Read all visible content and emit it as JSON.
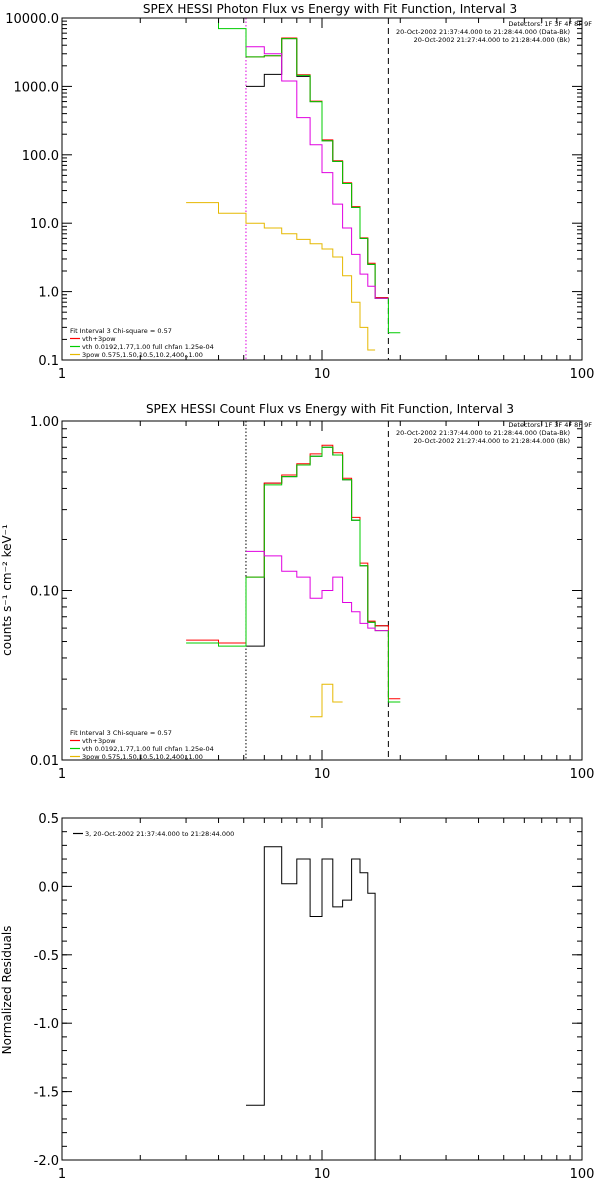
{
  "colors": {
    "black": "#000000",
    "red": "#ff0000",
    "green": "#00cc00",
    "magenta": "#e000e0",
    "orange": "#e6b800",
    "background": "#ffffff"
  },
  "chart_data": [
    {
      "type": "line",
      "title": "SPEX HESSI Photon Flux vs Energy with Fit Function, Interval 3",
      "xscale": "log",
      "yscale": "log",
      "xlim": [
        1,
        100
      ],
      "ylim": [
        0.1,
        10000
      ],
      "xticks": [
        1,
        10,
        100
      ],
      "xtick_labels": [
        "1",
        "10",
        "100"
      ],
      "yticks": [
        0.1,
        1,
        10,
        100,
        1000,
        10000
      ],
      "ytick_labels": [
        "0.1",
        "1.0",
        "10.0",
        "100.0",
        "1000.0",
        "10000.0"
      ],
      "vlines": [
        {
          "x": 5.1,
          "style": "dotted",
          "color": "magenta"
        },
        {
          "x": 18,
          "style": "dashed",
          "color": "black"
        }
      ],
      "header": [
        "Detectors: 1F 3F 4F 8F 9F",
        "20-Oct-2002 21:37:44.000 to 21:28:44.000 (Data-Bk)",
        "20-Oct-2002 21:27:44.000 to 21:28:44.000 (Bk)"
      ],
      "legend": {
        "title": "Fit Interval 3   Chi-square = 0.57",
        "entries": [
          {
            "label": "vth+3pow",
            "color": "red"
          },
          {
            "label": "vth 0.0192,1.77,1.00  full chfan 1.25e-04",
            "color": "green"
          },
          {
            "label": "3pow 0.575,1.50,10.5,10.2,400.,1.00",
            "color": "orange"
          }
        ]
      },
      "series": [
        {
          "color": "black",
          "edges": [
            5.1,
            6,
            7,
            8,
            9,
            10,
            11,
            12,
            13,
            14,
            15,
            16,
            18
          ],
          "values": [
            1000,
            1500,
            5000,
            1400,
            600,
            160,
            80,
            38,
            17,
            6,
            2.5,
            0.8
          ]
        },
        {
          "color": "red",
          "edges": [
            5.1,
            6,
            7,
            8,
            9,
            10,
            11,
            12,
            13,
            14,
            15,
            16,
            18
          ],
          "values": [
            2700,
            2800,
            5100,
            1480,
            610,
            165,
            82,
            39,
            17.5,
            6.1,
            2.6,
            0.82
          ]
        },
        {
          "color": "green",
          "edges": [
            3,
            4,
            5.1,
            6,
            7,
            8,
            9,
            10,
            11,
            12,
            13,
            14,
            15,
            16,
            18,
            20
          ],
          "values": [
            10000,
            7000,
            2700,
            2800,
            5000,
            1450,
            600,
            160,
            80,
            38,
            17,
            6,
            2.5,
            0.8,
            0.25
          ]
        },
        {
          "color": "magenta",
          "edges": [
            5.1,
            6,
            7,
            8,
            9,
            10,
            11,
            12,
            13,
            14,
            15,
            16,
            18
          ],
          "values": [
            3800,
            3000,
            1200,
            350,
            140,
            55,
            19,
            8.5,
            3.5,
            1.8,
            1.2,
            0.8
          ]
        },
        {
          "color": "orange",
          "edges": [
            3,
            4,
            5.1,
            6,
            7,
            8,
            9,
            10,
            11,
            12,
            13,
            14,
            15,
            16
          ],
          "values": [
            20,
            14,
            10,
            8.5,
            7,
            5.8,
            5,
            4.2,
            3.2,
            1.7,
            0.7,
            0.3,
            0.14
          ]
        }
      ]
    },
    {
      "type": "line",
      "title": "SPEX HESSI Count Flux vs Energy with Fit Function, Interval 3",
      "ylabel": "counts s⁻¹ cm⁻² keV⁻¹",
      "xscale": "log",
      "yscale": "log",
      "xlim": [
        1,
        100
      ],
      "ylim": [
        0.01,
        1
      ],
      "xticks": [
        1,
        10,
        100
      ],
      "xtick_labels": [
        "1",
        "10",
        "100"
      ],
      "yticks": [
        0.01,
        0.1,
        1
      ],
      "ytick_labels": [
        "0.01",
        "0.10",
        "1.00"
      ],
      "vlines": [
        {
          "x": 5.1,
          "style": "dotted",
          "color": "black"
        },
        {
          "x": 18,
          "style": "dashed",
          "color": "black"
        }
      ],
      "header": [
        "Detectors: 1F 3F 4F 8F 9F",
        "20-Oct-2002 21:37:44.000 to 21:28:44.000 (Data-Bk)",
        "20-Oct-2002 21:27:44.000 to 21:28:44.000 (Bk)"
      ],
      "legend": {
        "title": "Fit Interval 3   Chi-square = 0.57",
        "entries": [
          {
            "label": "vth+3pow",
            "color": "red"
          },
          {
            "label": "vth 0.0192,1.77,1.00  full chfan 1.25e-04",
            "color": "green"
          },
          {
            "label": "3pow 0.575,1.50,10.5,10.2,400.,1.00",
            "color": "orange"
          }
        ]
      },
      "series": [
        {
          "color": "black",
          "edges": [
            5.1,
            6,
            7,
            8,
            9,
            10,
            11,
            12,
            13,
            14,
            15,
            16,
            18
          ],
          "values": [
            0.047,
            0.43,
            0.47,
            0.55,
            0.62,
            0.7,
            0.63,
            0.45,
            0.26,
            0.14,
            0.065,
            0.062
          ]
        },
        {
          "color": "red",
          "edges": [
            3,
            4,
            5.1,
            6,
            7,
            8,
            9,
            10,
            11,
            12,
            13,
            14,
            15,
            16,
            18,
            20
          ],
          "values": [
            0.051,
            0.049,
            0.12,
            0.43,
            0.48,
            0.56,
            0.64,
            0.72,
            0.65,
            0.46,
            0.27,
            0.145,
            0.066,
            0.062,
            0.023
          ]
        },
        {
          "color": "green",
          "edges": [
            3,
            4,
            5.1,
            6,
            7,
            8,
            9,
            10,
            11,
            12,
            13,
            14,
            15,
            16,
            18,
            20
          ],
          "values": [
            0.049,
            0.047,
            0.12,
            0.42,
            0.47,
            0.55,
            0.62,
            0.7,
            0.63,
            0.45,
            0.26,
            0.14,
            0.065,
            0.058,
            0.022
          ]
        },
        {
          "color": "magenta",
          "edges": [
            5.1,
            6,
            7,
            8,
            9,
            10,
            11,
            12,
            13,
            14,
            15,
            16,
            18
          ],
          "values": [
            0.17,
            0.16,
            0.13,
            0.12,
            0.09,
            0.1,
            0.12,
            0.085,
            0.075,
            0.064,
            0.06,
            0.058
          ]
        },
        {
          "color": "orange",
          "edges": [
            9,
            10,
            11,
            12
          ],
          "values": [
            0.018,
            0.028,
            0.022
          ]
        }
      ]
    },
    {
      "type": "line",
      "ylabel": "Normalized Residuals",
      "xscale": "log",
      "yscale": "linear",
      "xlim": [
        1,
        100
      ],
      "ylim": [
        -2.0,
        0.5
      ],
      "xticks": [
        1,
        10,
        100
      ],
      "xtick_labels": [
        "1",
        "10",
        "100"
      ],
      "yticks": [
        -2.0,
        -1.5,
        -1.0,
        -0.5,
        0.0,
        0.5
      ],
      "ytick_labels": [
        "-2.0",
        "-1.5",
        "-1.0",
        "-0.5",
        "0.0",
        "0.5"
      ],
      "legend": {
        "entries": [
          {
            "label": "3, 20-Oct-2002 21:37:44.000 to 21:28:44.000",
            "color": "black"
          }
        ]
      },
      "series": [
        {
          "color": "black",
          "edges": [
            5.1,
            6,
            7,
            8,
            9,
            10,
            11,
            12,
            13,
            14,
            15,
            16,
            18
          ],
          "values": [
            -1.6,
            0.29,
            0.02,
            0.2,
            -0.22,
            0.2,
            -0.15,
            -0.1,
            0.2,
            0.1,
            -0.05,
            -2.0
          ]
        }
      ]
    }
  ]
}
